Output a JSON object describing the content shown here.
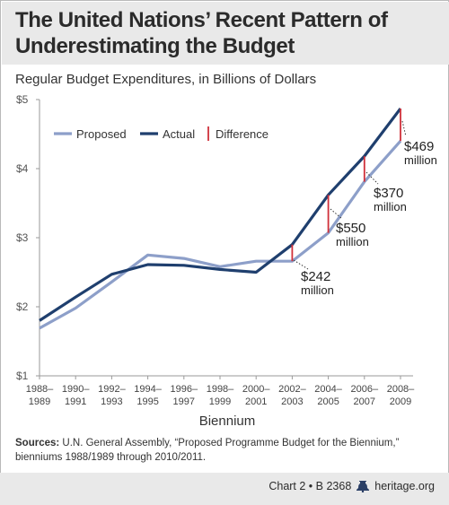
{
  "title": "The United Nations’ Recent Pattern of Underestimating the Budget",
  "subtitle": "Regular Budget Expenditures, in Billions of Dollars",
  "sources": {
    "lead": "Sources:",
    "text": "U.N. General Assembly, “Proposed Programme Budget for the Biennium,” bienniums 1988/1989 through 2010/2011."
  },
  "footer": {
    "chart_label": "Chart 2 • B 2368",
    "site": "heritage.org"
  },
  "colors": {
    "proposed": "#8d9fc9",
    "actual": "#1f3f6e",
    "difference": "#d0303a"
  },
  "chart_data": {
    "type": "line",
    "xlabel": "Biennium",
    "ylabel": "",
    "ylim": [
      1,
      5
    ],
    "y_ticks": [
      {
        "value": 1,
        "label": "$1"
      },
      {
        "value": 2,
        "label": "$2"
      },
      {
        "value": 3,
        "label": "$3"
      },
      {
        "value": 4,
        "label": "$4"
      },
      {
        "value": 5,
        "label": "$5"
      }
    ],
    "categories": [
      [
        "1988–",
        "1989"
      ],
      [
        "1990–",
        "1991"
      ],
      [
        "1992–",
        "1993"
      ],
      [
        "1994–",
        "1995"
      ],
      [
        "1996–",
        "1997"
      ],
      [
        "1998–",
        "1999"
      ],
      [
        "2000–",
        "2001"
      ],
      [
        "2002–",
        "2003"
      ],
      [
        "2004–",
        "2005"
      ],
      [
        "2006–",
        "2007"
      ],
      [
        "2008–",
        "2009"
      ]
    ],
    "series": [
      {
        "name": "Proposed",
        "values": [
          1.69,
          1.98,
          2.36,
          2.75,
          2.7,
          2.58,
          2.66,
          2.66,
          3.07,
          3.81,
          4.4
        ]
      },
      {
        "name": "Actual",
        "values": [
          1.8,
          2.14,
          2.47,
          2.61,
          2.6,
          2.54,
          2.5,
          2.9,
          3.62,
          4.18,
          4.87
        ]
      }
    ],
    "legend": {
      "placement": "top-left",
      "entries": [
        "Proposed",
        "Actual",
        "Difference"
      ]
    },
    "difference_annotations": [
      {
        "category_index": 7,
        "amount": "$242",
        "unit": "million"
      },
      {
        "category_index": 8,
        "amount": "$550",
        "unit": "million"
      },
      {
        "category_index": 9,
        "amount": "$370",
        "unit": "million"
      },
      {
        "category_index": 10,
        "amount": "$469",
        "unit": "million"
      }
    ],
    "grid": false
  }
}
